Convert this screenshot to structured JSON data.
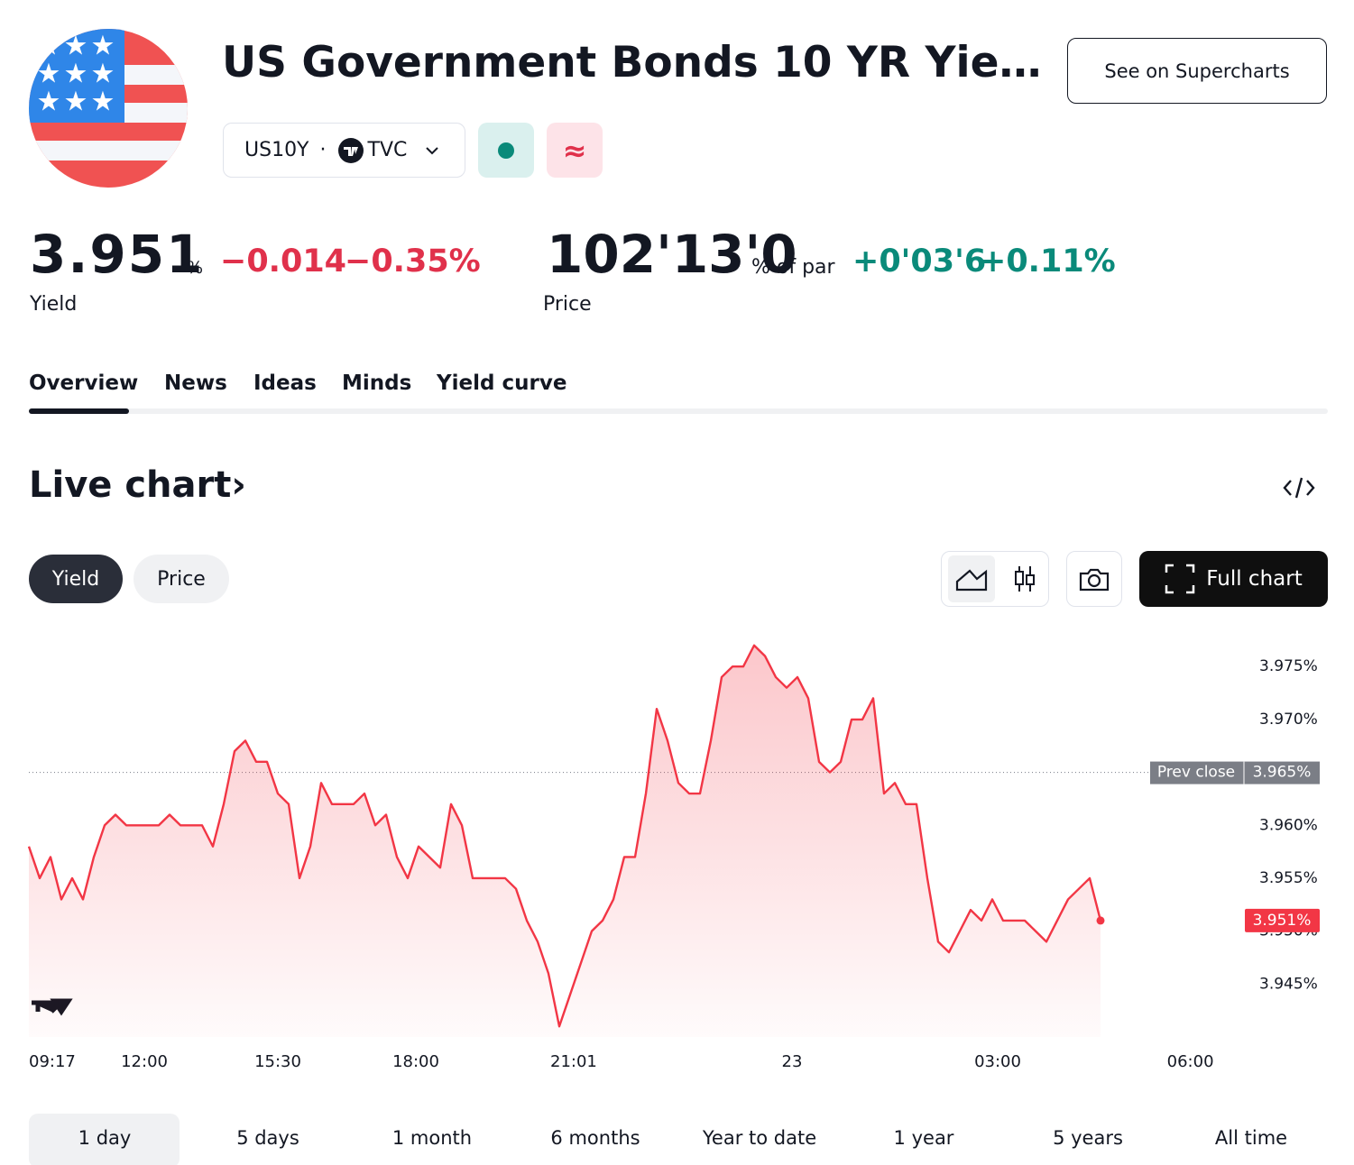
{
  "header": {
    "title": "US Government Bonds 10 YR Yie…",
    "symbol": "US10Y",
    "exchange": "TVC",
    "delay_icon": "≈",
    "supercharts_button": "See on Supercharts"
  },
  "quote": {
    "yield": {
      "value": "3.951",
      "unit": "%",
      "change": "−0.014",
      "change_percent": "−0.35%",
      "label": "Yield"
    },
    "price": {
      "value": "102'13'0",
      "unit": "% of par",
      "change": "+0'03'6",
      "change_percent": "+0.11%",
      "label": "Price"
    }
  },
  "tabs": [
    "Overview",
    "News",
    "Ideas",
    "Minds",
    "Yield curve"
  ],
  "section_title": "Live chart›",
  "chart_toggles": [
    "Yield",
    "Price"
  ],
  "full_chart_button": "Full chart",
  "chart_data": {
    "type": "line",
    "series": [
      {
        "color": "#f23645",
        "values": [
          3.958,
          3.955,
          3.957,
          3.953,
          3.955,
          3.953,
          3.957,
          3.96,
          3.961,
          3.96,
          3.96,
          3.96,
          3.96,
          3.961,
          3.96,
          3.96,
          3.96,
          3.958,
          3.962,
          3.967,
          3.968,
          3.966,
          3.966,
          3.963,
          3.962,
          3.955,
          3.958,
          3.964,
          3.962,
          3.962,
          3.962,
          3.963,
          3.96,
          3.961,
          3.957,
          3.955,
          3.958,
          3.957,
          3.956,
          3.962,
          3.96,
          3.955,
          3.955,
          3.955,
          3.955,
          3.954,
          3.951,
          3.949,
          3.946,
          3.941,
          3.944,
          3.947,
          3.95,
          3.951,
          3.953,
          3.957,
          3.957,
          3.963,
          3.971,
          3.968,
          3.964,
          3.963,
          3.963,
          3.968,
          3.974,
          3.975,
          3.975,
          3.977,
          3.976,
          3.974,
          3.973,
          3.974,
          3.972,
          3.966,
          3.965,
          3.966,
          3.97,
          3.97,
          3.972,
          3.963,
          3.964,
          3.962,
          3.962,
          3.955,
          3.949,
          3.948,
          3.95,
          3.952,
          3.951,
          3.953,
          3.951,
          3.951,
          3.951,
          3.95,
          3.949,
          3.951,
          3.953,
          3.954,
          3.955,
          3.951
        ]
      }
    ],
    "xlim": [
      0,
      111.5
    ],
    "xticks": [
      {
        "value": 0,
        "label": "09:17"
      },
      {
        "value": 10.67,
        "label": "12:00"
      },
      {
        "value": 23,
        "label": "15:30"
      },
      {
        "value": 35.75,
        "label": "18:00"
      },
      {
        "value": 50.33,
        "label": "21:01"
      },
      {
        "value": 70.5,
        "label": "23"
      },
      {
        "value": 89.5,
        "label": "03:00"
      },
      {
        "value": 107.3,
        "label": "06:00"
      }
    ],
    "ylim": [
      3.94,
      3.978
    ],
    "yticks": [
      {
        "value": 3.945,
        "label": "3.945%"
      },
      {
        "value": 3.95,
        "label": "3.950%"
      },
      {
        "value": 3.955,
        "label": "3.955%"
      },
      {
        "value": 3.96,
        "label": "3.960%"
      },
      {
        "value": 3.965,
        "label": "3.965%"
      },
      {
        "value": 3.97,
        "label": "3.970%"
      },
      {
        "value": 3.975,
        "label": "3.975%"
      }
    ],
    "prev_close": {
      "label": "Prev close",
      "value": 3.965,
      "value_label": "3.965%"
    },
    "last_label": "3.951%"
  },
  "ranges": [
    "1 day",
    "5 days",
    "1 month",
    "6 months",
    "Year to date",
    "1 year",
    "5 years",
    "All time"
  ]
}
